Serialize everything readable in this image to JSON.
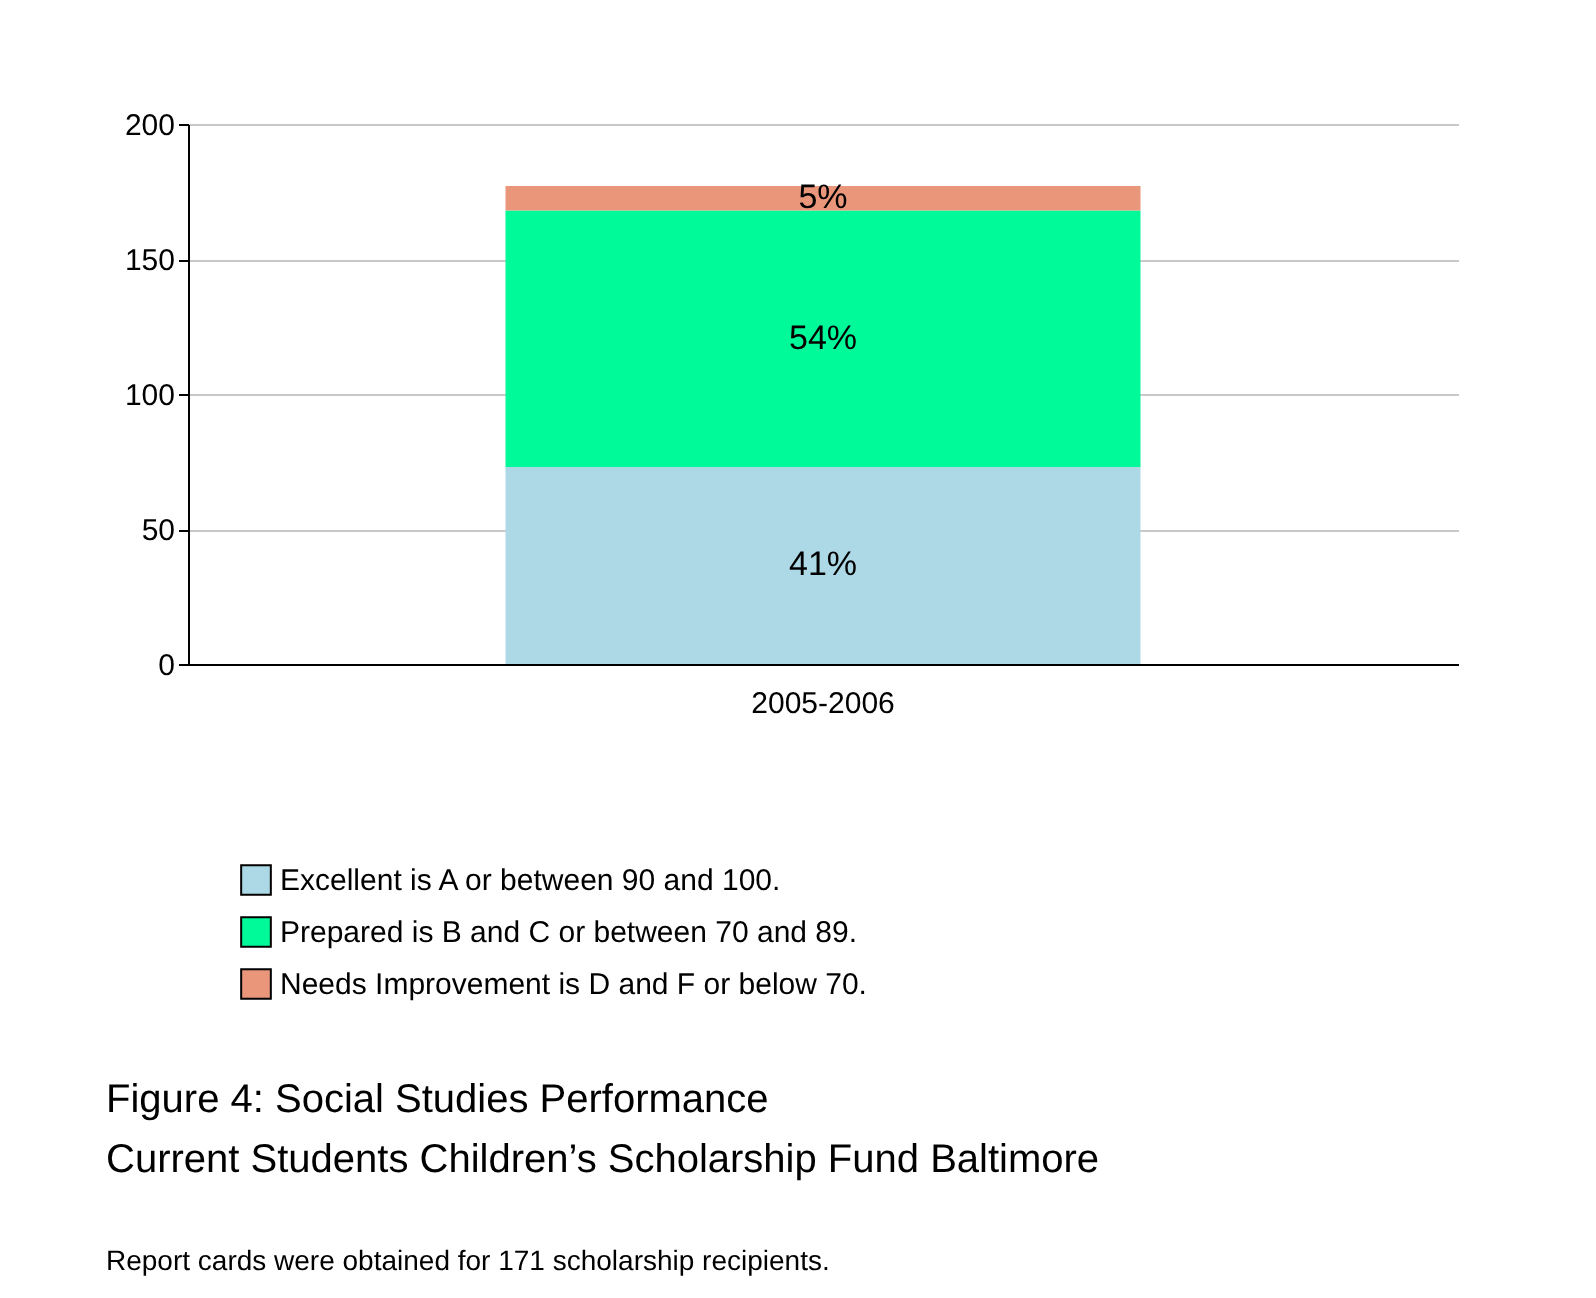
{
  "chart_data": {
    "type": "bar",
    "stacked": true,
    "title": "Figure 4: Social Studies Performance",
    "subtitle": "Current Students Children’s Scholarship Fund Baltimore",
    "annotations": [
      "41%",
      "54%",
      "5%",
      "Report cards were obtained for 171 scholarship recipients."
    ],
    "categories": [
      "2005-2006"
    ],
    "series": [
      {
        "name": "Excellent is A or between 90 and 100.",
        "color": "#add8e6",
        "values": [
          73
        ]
      },
      {
        "name": "Prepared is B and C or between 70 and 89.",
        "color": "#00fa9a",
        "values": [
          95
        ]
      },
      {
        "name": "Needs Improvement is D and F or below 70.",
        "color": "#e9967a",
        "values": [
          9
        ]
      }
    ],
    "ylim": [
      0,
      200
    ],
    "yticks": [
      0,
      50,
      100,
      150,
      200
    ],
    "grid": "y",
    "legend": "bottom left"
  }
}
